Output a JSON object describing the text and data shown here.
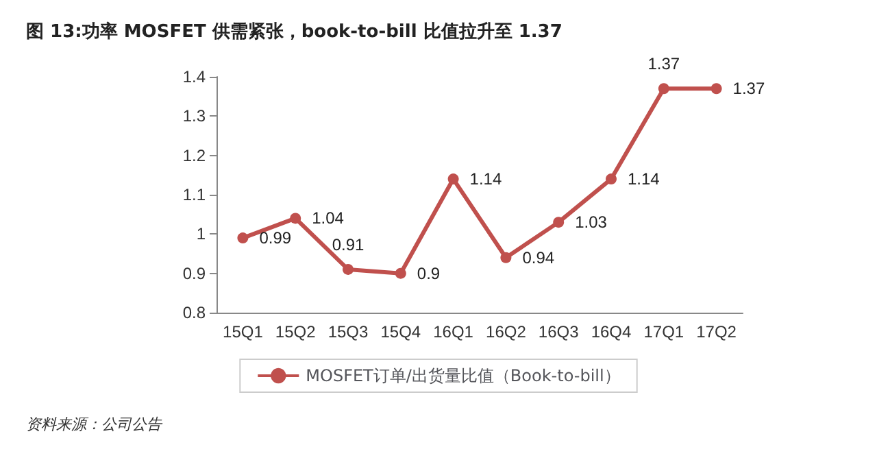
{
  "chart_data": {
    "type": "line",
    "title": "图 13:功率 MOSFET 供需紧张，book-to-bill 比值拉升至 1.37",
    "categories": [
      "15Q1",
      "15Q2",
      "15Q3",
      "15Q4",
      "16Q1",
      "16Q2",
      "16Q3",
      "16Q4",
      "17Q1",
      "17Q2"
    ],
    "series": [
      {
        "name": "MOSFET订单/出货量比值（Book-to-bill）",
        "color": "#c0504d",
        "values": [
          0.99,
          1.04,
          0.91,
          0.9,
          1.14,
          0.94,
          1.03,
          1.14,
          1.37,
          1.37
        ]
      }
    ],
    "ylim": [
      0.8,
      1.4
    ],
    "yticks": [
      0.8,
      0.9,
      1,
      1.1,
      1.2,
      1.3,
      1.4
    ],
    "data_labels": true,
    "marker": "circle",
    "legend": "bottom",
    "grid": false,
    "annotations": [
      "资料来源：公司公告"
    ]
  }
}
